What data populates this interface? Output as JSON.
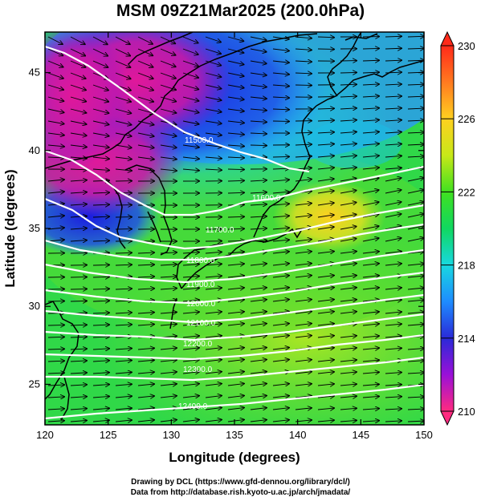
{
  "title": "MSM 09Z21Mar2025 (200.0hPa)",
  "map": {
    "xlabel": "Longitude (degrees)",
    "ylabel": "Latitude  (degrees)",
    "x_ticks": [
      120,
      125,
      130,
      135,
      140,
      145,
      150
    ],
    "y_ticks": [
      25,
      30,
      35,
      40,
      45
    ],
    "x_range": [
      120,
      150
    ],
    "y_range": [
      22.4,
      47.6
    ],
    "fill_variable_range": [
      210,
      230
    ],
    "contour_labels": [
      "11500.0",
      "11600.0",
      "11700.0",
      "11800.0",
      "11900.0",
      "12000.0",
      "12100.0",
      "12200.0",
      "12300.0",
      "12400.0"
    ]
  },
  "colorbar": {
    "ticks": [
      {
        "value": 230,
        "label": "230"
      },
      {
        "value": 226,
        "label": "226"
      },
      {
        "value": 222,
        "label": "222"
      },
      {
        "value": 218,
        "label": "218"
      },
      {
        "value": 214,
        "label": "214"
      },
      {
        "value": 210,
        "label": "210"
      }
    ],
    "colors": [
      "#ff2a80",
      "#9a10d8",
      "#2a2ad8",
      "#1e8cff",
      "#18d8e0",
      "#10d860",
      "#40e020",
      "#c8e818",
      "#ffd020",
      "#ff7a20",
      "#ff2a1a"
    ]
  },
  "credits": {
    "line1": "Drawing by DCL (https://www.gfd-dennou.org/library/dcl/)",
    "line2": "Data from http://database.rish.kyoto-u.ac.jp/arch/jmadata/"
  }
}
